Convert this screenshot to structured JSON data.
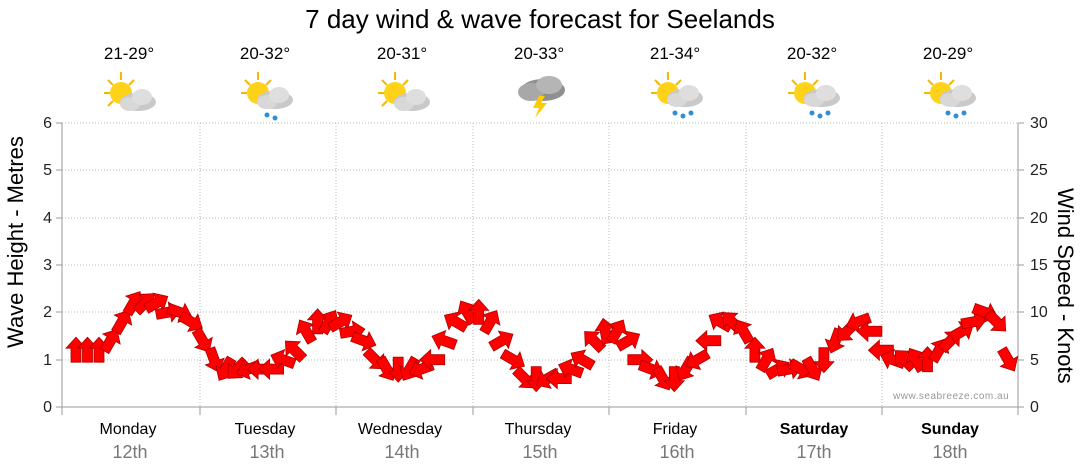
{
  "title": "7 day wind & wave forecast for Seelands",
  "watermark": "www.seabreeze.com.au",
  "days": [
    {
      "name": "Monday",
      "date": "12th",
      "temp": "21-29°",
      "icon": "partly-cloudy-icon",
      "bold": false
    },
    {
      "name": "Tuesday",
      "date": "13th",
      "temp": "20-32°",
      "icon": "partly-cloudy-rain-icon",
      "bold": false
    },
    {
      "name": "Wednesday",
      "date": "14th",
      "temp": "20-31°",
      "icon": "partly-cloudy-icon",
      "bold": false
    },
    {
      "name": "Thursday",
      "date": "15th",
      "temp": "20-33°",
      "icon": "thunderstorm-icon",
      "bold": false
    },
    {
      "name": "Friday",
      "date": "16th",
      "temp": "21-34°",
      "icon": "partly-cloudy-rain-icon",
      "bold": false
    },
    {
      "name": "Saturday",
      "date": "17th",
      "temp": "20-32°",
      "icon": "partly-cloudy-rain-icon",
      "bold": true
    },
    {
      "name": "Sunday",
      "date": "18th",
      "temp": "20-29°",
      "icon": "partly-cloudy-rain-icon",
      "bold": true
    }
  ],
  "chart_data": {
    "type": "line",
    "ylabel": "Wave Height - Metres",
    "y2label": "Wind Speed - Knots",
    "ylim": [
      0,
      6
    ],
    "y2lim": [
      0,
      30
    ],
    "yticks": [
      "0",
      "1",
      "2",
      "3",
      "4",
      "5",
      "6"
    ],
    "y2ticks": [
      "0",
      "5",
      "10",
      "15",
      "20",
      "25",
      "30"
    ],
    "grid": true,
    "arrow_color": "#ff0000",
    "wind_speed_knots": [
      6,
      6,
      6,
      7,
      9,
      11,
      11,
      11,
      10,
      10,
      9,
      7,
      5,
      4,
      4,
      4,
      4,
      4,
      5,
      6,
      8,
      9,
      9,
      9,
      8,
      7,
      5,
      4,
      4,
      4,
      4,
      5,
      7,
      9,
      10,
      10,
      9,
      7,
      5,
      3,
      3,
      3,
      3,
      4,
      5,
      7,
      8,
      8,
      7,
      5,
      4,
      3,
      3,
      4,
      5,
      7,
      9,
      9,
      8,
      6,
      5,
      4,
      4,
      4,
      4,
      5,
      7,
      8,
      9,
      8,
      6,
      5,
      5,
      5,
      5,
      6,
      7,
      8,
      9,
      10,
      9,
      5
    ],
    "wind_direction_deg": [
      -90,
      -90,
      -90,
      -60,
      -60,
      -60,
      -45,
      -30,
      -10,
      20,
      30,
      60,
      70,
      120,
      135,
      160,
      180,
      180,
      -160,
      -135,
      -120,
      -90,
      -60,
      -30,
      -10,
      20,
      45,
      60,
      90,
      120,
      160,
      180,
      -160,
      -150,
      -120,
      -90,
      -60,
      -30,
      30,
      45,
      90,
      150,
      180,
      -160,
      -150,
      -135,
      -100,
      -60,
      -30,
      0,
      20,
      60,
      90,
      120,
      150,
      180,
      -150,
      -135,
      -120,
      -90,
      -60,
      -30,
      -10,
      30,
      60,
      90,
      110,
      135,
      160,
      180,
      180,
      -160,
      -135,
      -120,
      -90,
      -60,
      -45,
      -30,
      -10,
      20,
      45,
      60
    ]
  }
}
